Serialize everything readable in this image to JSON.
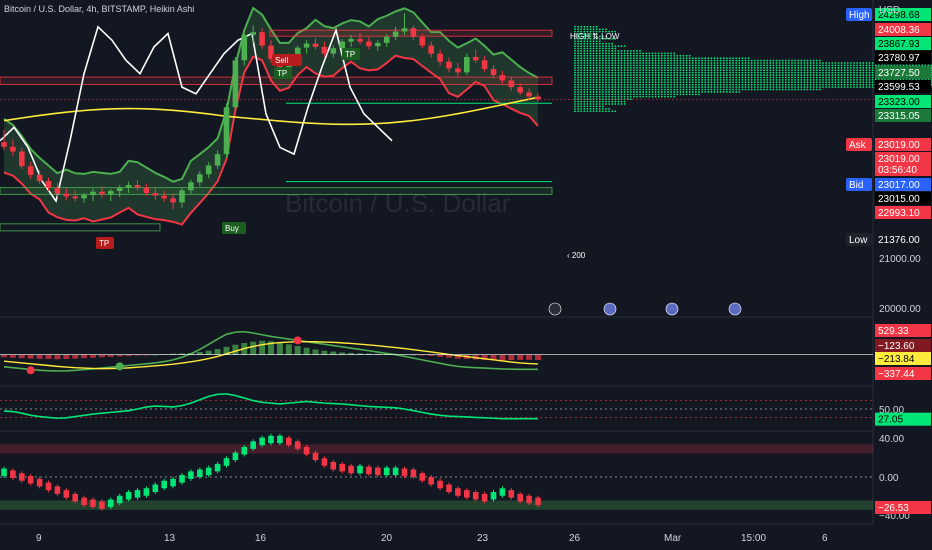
{
  "header": {
    "title": "Bitcoin / U.S. Dollar, 4h, BITSTAMP, Heikin Ashi",
    "currency": "USD"
  },
  "watermark": "Bitcoin / U.S. Dollar",
  "volume_profile": {
    "title": "HIGH ⇅ LOW",
    "lookback": "200",
    "arrow": "‹"
  },
  "signals": {
    "sell": "Sell",
    "buy": "Buy",
    "tp": "TP"
  },
  "colors": {
    "bg": "#131722",
    "up": "#4caf50",
    "down": "#f23645",
    "bright_green": "#00e676",
    "yellow": "#ffeb3b",
    "white": "#ffffff",
    "grid": "#2a2e39",
    "axis_text": "#d1d4dc"
  },
  "price_axis": {
    "badges": [
      {
        "label": "High",
        "value": "24298.68",
        "color": "#00e676",
        "text": "#000000",
        "tag_color": "#2962ff"
      },
      {
        "value": "24008.36",
        "color": "#f23645",
        "text": "#ffffff"
      },
      {
        "value": "23867.93",
        "color": "#00e676",
        "text": "#000000"
      },
      {
        "value": "23780.97",
        "color": "#000000",
        "text": "#ffffff"
      },
      {
        "value": "23727.50",
        "color": "#1b7a3a",
        "text": "#ffffff"
      },
      {
        "value": "23599.53",
        "color": "#000000",
        "text": "#ffffff"
      },
      {
        "value": "23323.00",
        "color": "#00e676",
        "text": "#000000"
      },
      {
        "value": "23315.05",
        "color": "#1b7a3a",
        "text": "#ffffff"
      },
      {
        "label": "Ask",
        "value": "23019.00",
        "color": "#f23645",
        "text": "#ffffff",
        "tag_color": "#f23645"
      },
      {
        "value": "23019.00",
        "color": "#f23645",
        "text": "#ffffff"
      },
      {
        "value": "03:56:40",
        "color": "#f23645",
        "text": "#ffffff"
      },
      {
        "label": "Bid",
        "value": "23017.00",
        "color": "#2962ff",
        "text": "#ffffff",
        "tag_color": "#2962ff"
      },
      {
        "value": "23015.00",
        "color": "#000000",
        "text": "#ffffff"
      },
      {
        "value": "22993.10",
        "color": "#f23645",
        "text": "#ffffff"
      },
      {
        "label": "Low",
        "value": "21376.00",
        "color": "#131722",
        "text": "#ffffff",
        "tag_color": "#1e222d"
      }
    ],
    "ticks": [
      "21000.00",
      "20000.00"
    ]
  },
  "macd_axis": {
    "badges": [
      {
        "value": "529.33",
        "color": "#f23645",
        "text": "#ffffff"
      },
      {
        "value": "−123.60",
        "color": "#801922",
        "text": "#ffffff"
      },
      {
        "value": "−213.84",
        "color": "#ffeb3b",
        "text": "#000000"
      },
      {
        "value": "−337.44",
        "color": "#f23645",
        "text": "#ffffff"
      }
    ]
  },
  "rsi_axis": {
    "tick": "50.00",
    "value": "27.05"
  },
  "osc_axis": {
    "ticks": [
      "40.00",
      "0.00",
      "−40.00"
    ],
    "value": "−26.53"
  },
  "time_axis": [
    "9",
    "13",
    "16",
    "20",
    "23",
    "26",
    "Mar",
    "15:00",
    "6"
  ],
  "chart_data": [
    {
      "type": "candlestick",
      "name": "price",
      "ylim": [
        19800,
        24500
      ],
      "candles": [
        [
          22380,
          22560,
          22260,
          22310
        ],
        [
          22310,
          22420,
          22170,
          22240
        ],
        [
          22240,
          22300,
          21980,
          22020
        ],
        [
          22020,
          22080,
          21830,
          21890
        ],
        [
          21890,
          21960,
          21760,
          21800
        ],
        [
          21800,
          21850,
          21650,
          21700
        ],
        [
          21700,
          21770,
          21560,
          21610
        ],
        [
          21610,
          21690,
          21510,
          21570
        ],
        [
          21570,
          21660,
          21490,
          21540
        ],
        [
          21540,
          21620,
          21470,
          21590
        ],
        [
          21590,
          21690,
          21500,
          21640
        ],
        [
          21640,
          21720,
          21550,
          21600
        ],
        [
          21600,
          21680,
          21500,
          21650
        ],
        [
          21650,
          21740,
          21560,
          21700
        ],
        [
          21700,
          21790,
          21620,
          21740
        ],
        [
          21740,
          21810,
          21660,
          21700
        ],
        [
          21700,
          21760,
          21580,
          21620
        ],
        [
          21620,
          21700,
          21520,
          21580
        ],
        [
          21580,
          21650,
          21490,
          21540
        ],
        [
          21540,
          21610,
          21380,
          21480
        ],
        [
          21480,
          21700,
          21400,
          21660
        ],
        [
          21660,
          21820,
          21600,
          21780
        ],
        [
          21780,
          21950,
          21720,
          21900
        ],
        [
          21900,
          22080,
          21840,
          22030
        ],
        [
          22030,
          22260,
          21980,
          22200
        ],
        [
          22200,
          22960,
          22150,
          22900
        ],
        [
          22900,
          23650,
          22850,
          23600
        ],
        [
          23600,
          24050,
          23520,
          23980
        ],
        [
          23980,
          24120,
          23860,
          24020
        ],
        [
          24020,
          24080,
          23770,
          23820
        ],
        [
          23820,
          23900,
          23560,
          23620
        ],
        [
          23620,
          23690,
          23400,
          23460
        ],
        [
          23460,
          23700,
          23400,
          23660
        ],
        [
          23660,
          23820,
          23580,
          23790
        ],
        [
          23790,
          23900,
          23700,
          23850
        ],
        [
          23850,
          23930,
          23760,
          23800
        ],
        [
          23800,
          23880,
          23650,
          23700
        ],
        [
          23700,
          23820,
          23640,
          23780
        ],
        [
          23780,
          23920,
          23720,
          23880
        ],
        [
          23880,
          23980,
          23800,
          23920
        ],
        [
          23920,
          24010,
          23840,
          23880
        ],
        [
          23880,
          23950,
          23760,
          23810
        ],
        [
          23810,
          23900,
          23740,
          23860
        ],
        [
          23860,
          23990,
          23800,
          23950
        ],
        [
          23950,
          24100,
          23900,
          24030
        ],
        [
          24030,
          24300,
          23980,
          24080
        ],
        [
          24080,
          24120,
          23900,
          23950
        ],
        [
          23950,
          24000,
          23780,
          23820
        ],
        [
          23820,
          23880,
          23640,
          23700
        ],
        [
          23700,
          23760,
          23520,
          23580
        ],
        [
          23580,
          23640,
          23420,
          23480
        ],
        [
          23480,
          23560,
          23360,
          23420
        ],
        [
          23420,
          23700,
          23380,
          23650
        ],
        [
          23650,
          23760,
          23560,
          23600
        ],
        [
          23600,
          23660,
          23420,
          23470
        ],
        [
          23470,
          23520,
          23330,
          23380
        ],
        [
          23380,
          23440,
          23250,
          23300
        ],
        [
          23300,
          23360,
          23150,
          23200
        ],
        [
          23200,
          23260,
          23080,
          23120
        ],
        [
          23120,
          23180,
          23020,
          23060
        ],
        [
          23060,
          23110,
          22980,
          23020
        ]
      ]
    },
    {
      "type": "histogram",
      "name": "macd",
      "ylim": [
        -700,
        800
      ],
      "values": [
        -60,
        -70,
        -80,
        -90,
        -95,
        -100,
        -105,
        -100,
        -90,
        -80,
        -70,
        -60,
        -50,
        -40,
        -30,
        -20,
        -10,
        0,
        10,
        20,
        30,
        40,
        60,
        90,
        130,
        180,
        230,
        270,
        300,
        320,
        310,
        280,
        240,
        200,
        160,
        120,
        90,
        70,
        50,
        40,
        30,
        25,
        20,
        15,
        10,
        5,
        0,
        -10,
        -30,
        -50,
        -70,
        -90,
        -100,
        -110,
        -120,
        -130,
        -130,
        -125,
        -120,
        -118,
        -124
      ],
      "macd_line": [
        -280,
        -300,
        -320,
        -340,
        -360,
        -370,
        -375,
        -372,
        -360,
        -345,
        -330,
        -310,
        -290,
        -270,
        -250,
        -230,
        -210,
        -190,
        -160,
        -120,
        -60,
        20,
        120,
        240,
        360,
        470,
        520,
        529,
        500,
        460,
        420,
        390,
        360,
        330,
        300,
        270,
        240,
        210,
        180,
        150,
        120,
        90,
        60,
        30,
        0,
        -40,
        -80,
        -120,
        -160,
        -200,
        -240,
        -270,
        -290,
        -300,
        -310,
        -320,
        -330,
        -335,
        -337,
        -337,
        -337
      ],
      "signal_line": [
        -150,
        -170,
        -190,
        -210,
        -230,
        -250,
        -270,
        -285,
        -300,
        -310,
        -318,
        -322,
        -320,
        -315,
        -305,
        -290,
        -275,
        -258,
        -240,
        -220,
        -195,
        -165,
        -130,
        -90,
        -40,
        20,
        80,
        140,
        190,
        230,
        260,
        280,
        292,
        298,
        300,
        298,
        292,
        284,
        272,
        258,
        242,
        225,
        206,
        185,
        163,
        140,
        115,
        90,
        62,
        34,
        6,
        -20,
        -45,
        -70,
        -95,
        -120,
        -145,
        -170,
        -190,
        -205,
        -214
      ]
    },
    {
      "type": "line",
      "name": "rsi",
      "ylim": [
        0,
        100
      ],
      "levels": [
        70,
        50,
        30
      ],
      "values": [
        45,
        44,
        40,
        35,
        32,
        30,
        28,
        29,
        32,
        35,
        38,
        40,
        42,
        44,
        46,
        50,
        55,
        57,
        56,
        55,
        58,
        64,
        72,
        80,
        85,
        86,
        82,
        76,
        70,
        66,
        64,
        62,
        64,
        66,
        68,
        66,
        64,
        63,
        62,
        60,
        58,
        56,
        55,
        54,
        53,
        50,
        46,
        42,
        38,
        35,
        33,
        32,
        31,
        30,
        29,
        28,
        27,
        27,
        27,
        27,
        27
      ]
    },
    {
      "type": "histogram",
      "name": "oscillator",
      "ylim": [
        -48,
        48
      ],
      "band_upper": [
        25,
        35
      ],
      "band_lower": [
        -25,
        -35
      ],
      "values": [
        5,
        3,
        0,
        -3,
        -6,
        -10,
        -14,
        -18,
        -22,
        -26,
        -28,
        -30,
        -28,
        -24,
        -20,
        -18,
        -16,
        -12,
        -8,
        -6,
        -2,
        2,
        4,
        6,
        10,
        16,
        22,
        28,
        34,
        38,
        40,
        40,
        38,
        34,
        28,
        22,
        16,
        12,
        10,
        8,
        8,
        7,
        6,
        6,
        6,
        5,
        4,
        0,
        -4,
        -8,
        -12,
        -16,
        -18,
        -20,
        -22,
        -20,
        -16,
        -18,
        -22,
        -24,
        -26
      ]
    }
  ]
}
